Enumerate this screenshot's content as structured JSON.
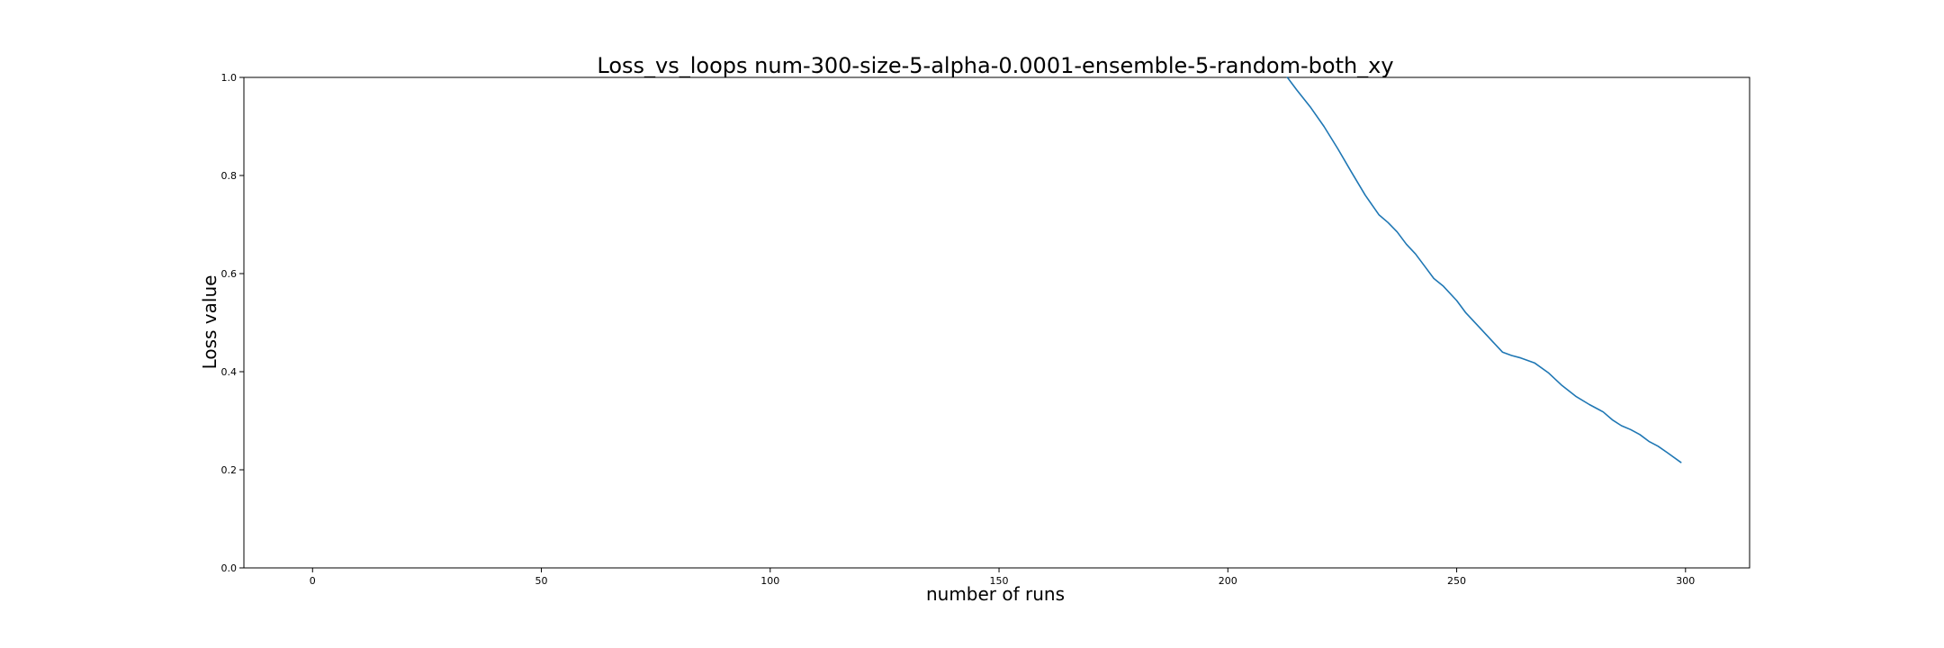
{
  "chart_data": {
    "type": "line",
    "title": "Loss_vs_loops num-300-size-5-alpha-0.0001-ensemble-5-random-both_xy",
    "xlabel": "number of runs",
    "ylabel": "Loss value",
    "xlim": [
      -15,
      314
    ],
    "ylim": [
      0.0,
      1.0
    ],
    "xticks": [
      0,
      50,
      100,
      150,
      200,
      250,
      300
    ],
    "yticks": [
      0.0,
      0.2,
      0.4,
      0.6,
      0.8,
      1.0
    ],
    "grid": false,
    "legend": "none",
    "series": [
      {
        "color": "#1f77b4",
        "x": [
          213,
          215,
          218,
          221,
          224,
          227,
          230,
          233,
          235,
          237,
          239,
          241,
          243,
          245,
          247,
          250,
          252,
          255,
          258,
          260,
          262,
          264,
          267,
          270,
          273,
          276,
          279,
          282,
          284,
          286,
          288,
          290,
          292,
          294,
          296,
          299
        ],
        "y": [
          1.0,
          0.975,
          0.94,
          0.9,
          0.855,
          0.807,
          0.76,
          0.72,
          0.704,
          0.685,
          0.66,
          0.64,
          0.615,
          0.59,
          0.575,
          0.545,
          0.52,
          0.49,
          0.46,
          0.44,
          0.433,
          0.428,
          0.418,
          0.398,
          0.372,
          0.35,
          0.333,
          0.318,
          0.302,
          0.29,
          0.282,
          0.272,
          0.258,
          0.248,
          0.235,
          0.215
        ]
      }
    ]
  }
}
